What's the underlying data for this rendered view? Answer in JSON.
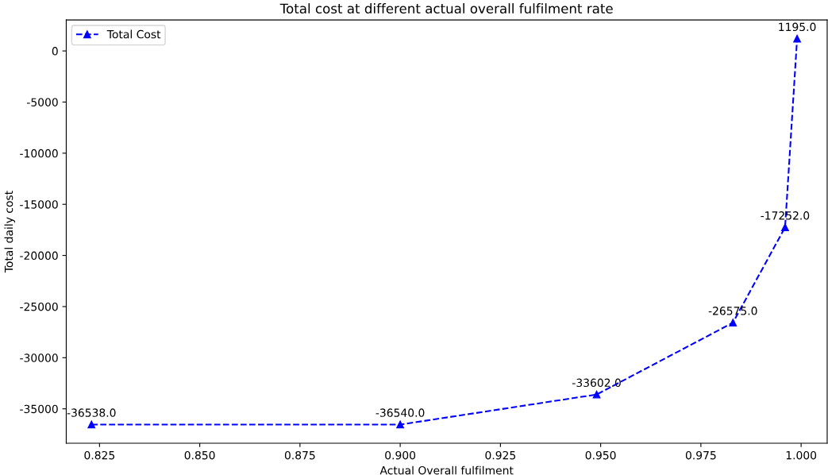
{
  "chart_data": {
    "type": "line",
    "title": "Total cost at different actual overall fulfilment rate",
    "xlabel": "Actual Overall fulfilment",
    "ylabel": "Total daily cost",
    "x": [
      0.823,
      0.9,
      0.949,
      0.983,
      0.996,
      0.999
    ],
    "series": [
      {
        "name": "Total Cost",
        "color": "#0000ff",
        "values": [
          -36538,
          -36540,
          -33602,
          -26575,
          -17252,
          1195
        ],
        "value_labels": [
          "-36538.0",
          "-36540.0",
          "-33602.0",
          "-26575.0",
          "-17252.0",
          "1195.0"
        ]
      }
    ],
    "xlim": [
      0.8167,
      1.0065
    ],
    "xticks": [
      {
        "value": 0.825,
        "label": "0.825"
      },
      {
        "value": 0.85,
        "label": "0.850"
      },
      {
        "value": 0.875,
        "label": "0.875"
      },
      {
        "value": 0.9,
        "label": "0.900"
      },
      {
        "value": 0.925,
        "label": "0.925"
      },
      {
        "value": 0.95,
        "label": "0.950"
      },
      {
        "value": 0.975,
        "label": "0.975"
      },
      {
        "value": 1.0,
        "label": "1.000"
      }
    ],
    "ylim": [
      -38360,
      3030
    ],
    "yticks": [
      -35000,
      -30000,
      -25000,
      -20000,
      -15000,
      -10000,
      -5000,
      0
    ],
    "marker": "triangle",
    "line_style": "dashed",
    "legend": "top left",
    "grid": false
  }
}
